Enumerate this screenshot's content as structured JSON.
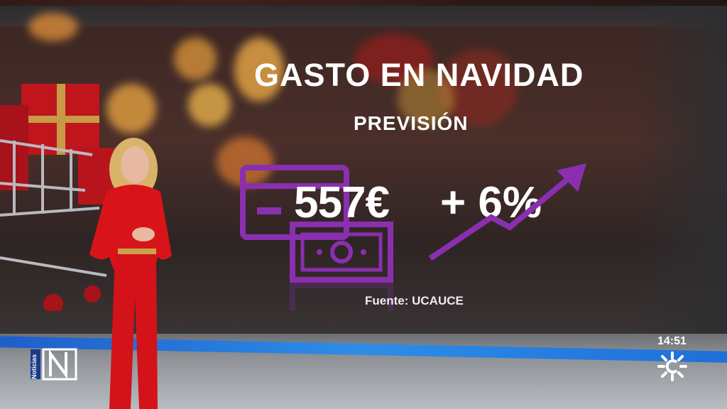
{
  "graphic": {
    "title": "GASTO EN NAVIDAD",
    "subtitle": "PREVISIÓN",
    "spend_value": "557€",
    "growth_value": "+ 6%",
    "source": "Fuente: UCAUCE"
  },
  "overlay": {
    "channel_tag": "Noticias",
    "time": "14:51"
  },
  "icons": [
    "credit-card-icon",
    "banknote-icon",
    "trend-up-arrow-icon",
    "gift-box-icon",
    "shopping-cart-icon",
    "canal-sur-sun-logo",
    "noticias-n1-logo"
  ],
  "colors": {
    "accent_purple": "#8a2fb0",
    "band_blue": "#2d8de8",
    "dress_red": "#d8141a"
  }
}
